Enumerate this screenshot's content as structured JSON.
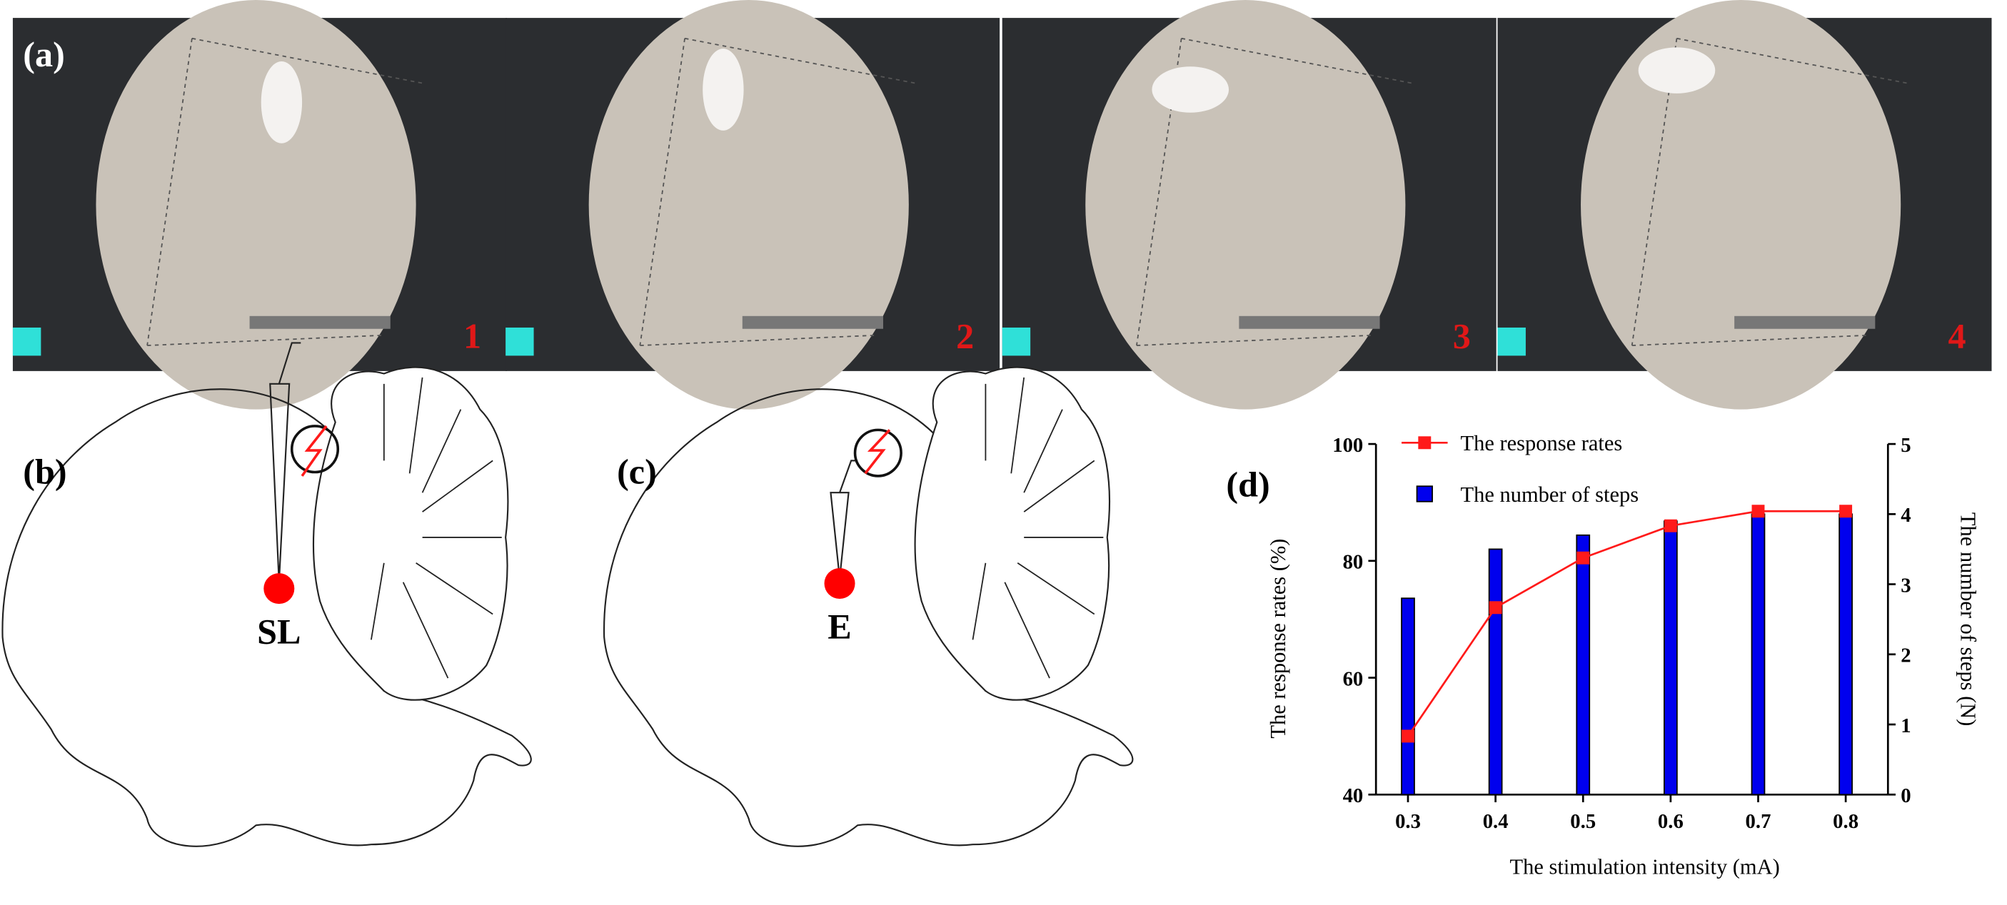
{
  "panels": {
    "a": "(a)",
    "b": "(b)",
    "c": "(c)",
    "d": "(d)"
  },
  "photos": [
    "1",
    "2",
    "3",
    "4"
  ],
  "diagrams": {
    "b_site": "SL",
    "c_site": "E"
  },
  "chart_data": {
    "type": "combo",
    "xlabel": "The stimulation intensity (mA)",
    "ylabel": "The response rates (%)",
    "y2label": "The number of steps (N)",
    "categories": [
      "0.3",
      "0.4",
      "0.5",
      "0.6",
      "0.7",
      "0.8"
    ],
    "ylim": [
      40,
      100
    ],
    "yticks": [
      40,
      60,
      80,
      100
    ],
    "y2lim": [
      0,
      5
    ],
    "y2ticks": [
      0,
      1,
      2,
      3,
      4,
      5
    ],
    "legend": "upper left",
    "series": [
      {
        "name": "The response rates",
        "type": "line",
        "color": "#ff1a1a",
        "values": [
          50,
          72,
          80.5,
          86,
          88.5,
          88.5
        ]
      },
      {
        "name": "The number of steps",
        "type": "bar",
        "axis": "y2",
        "color": "#0000ee",
        "values": [
          2.8,
          3.5,
          3.7,
          3.9,
          4.0,
          4.0
        ]
      }
    ]
  }
}
